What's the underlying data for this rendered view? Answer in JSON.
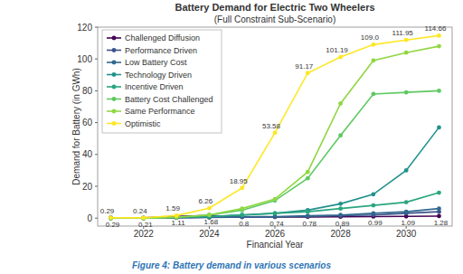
{
  "chart_data": {
    "type": "line",
    "title": "Battery Demand for Electric Two Wheelers",
    "subtitle": "(Full Constraint Sub-Scenario)",
    "x_label": "Financial Year",
    "y_label": "Demand for Battery (in GWh)",
    "caption": "Figure 4: Battery demand in various scenarios",
    "x": [
      2021,
      2022,
      2023,
      2024,
      2025,
      2026,
      2027,
      2028,
      2029,
      2030,
      2031
    ],
    "xlim": [
      2020.6,
      2031.4
    ],
    "xticks": [
      2022,
      2024,
      2026,
      2028,
      2030
    ],
    "ylim": [
      -5,
      120
    ],
    "yticks": [
      0,
      20,
      40,
      60,
      80,
      100,
      120
    ],
    "grid": false,
    "legend": "upper left",
    "marker": "circle",
    "series": [
      {
        "name": "Challenged Diffusion",
        "color": "#440154",
        "data_labels": true,
        "values": [
          0.29,
          0.21,
          1.11,
          1.68,
          0.8,
          0.74,
          0.78,
          0.89,
          0.99,
          1.09,
          1.28
        ]
      },
      {
        "name": "Performance Driven",
        "color": "#3b528b",
        "values": [
          0,
          0,
          0.2,
          0.4,
          0.6,
          0.7,
          1,
          1.5,
          2,
          3,
          4
        ]
      },
      {
        "name": "Low Battery Cost",
        "color": "#31688e",
        "values": [
          0,
          0,
          0.3,
          0.5,
          1,
          1,
          1.5,
          2,
          3,
          4,
          6
        ]
      },
      {
        "name": "Technology Driven",
        "color": "#21918c",
        "values": [
          0,
          0,
          0.5,
          1,
          2,
          3,
          5,
          9,
          15,
          30,
          57
        ]
      },
      {
        "name": "Incentive Driven",
        "color": "#2aa57f",
        "values": [
          0,
          0,
          0.5,
          1,
          2,
          3,
          4,
          6,
          8,
          10,
          16
        ]
      },
      {
        "name": "Battery Cost Challenged",
        "color": "#5ec962",
        "values": [
          0,
          0,
          0.5,
          2,
          5,
          11,
          25,
          52,
          78,
          79,
          80
        ]
      },
      {
        "name": "Same Performance",
        "color": "#90d743",
        "values": [
          0,
          0,
          0.5,
          2,
          6,
          12,
          29,
          72,
          99,
          104,
          108
        ]
      },
      {
        "name": "Optimistic",
        "color": "#fde725",
        "data_labels": true,
        "values": [
          0.29,
          0.24,
          1.59,
          6.26,
          18.95,
          53.58,
          91.17,
          101.19,
          109.0,
          111.95,
          114.66
        ],
        "value_labels": [
          "0.29",
          "0.24",
          "1.59",
          "6.26",
          "18.95",
          "53.58",
          "91.17",
          "101.19",
          "109.0",
          "111.95",
          "114.66"
        ]
      }
    ]
  }
}
